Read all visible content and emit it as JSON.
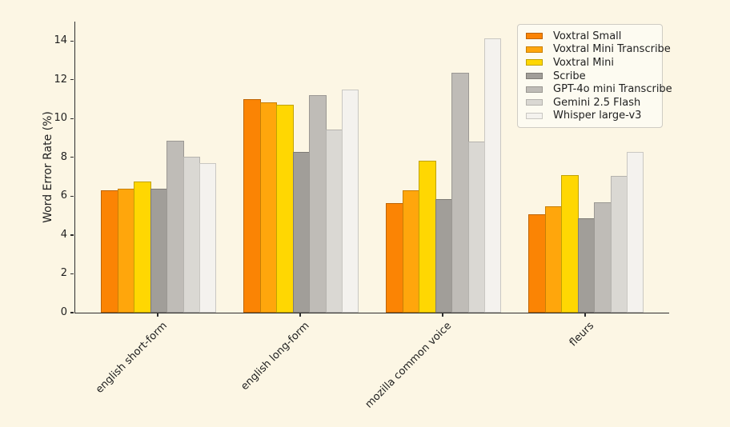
{
  "chart_data": {
    "type": "bar",
    "title": "",
    "ylabel": "Word Error Rate (%)",
    "xlabel": "",
    "categories": [
      "english short-form",
      "english long-form",
      "mozilla common voice",
      "fleurs"
    ],
    "series": [
      {
        "name": "Voxtral Small",
        "color": "#FB8404",
        "edge": "#BE6403",
        "values": [
          6.3,
          11.0,
          5.65,
          5.05
        ]
      },
      {
        "name": "Voxtral Mini Transcribe",
        "color": "#FFA60C",
        "edge": "#C77F06",
        "values": [
          6.4,
          10.85,
          6.3,
          5.5
        ]
      },
      {
        "name": "Voxtral Mini",
        "color": "#FFD702",
        "edge": "#C0A202",
        "values": [
          6.75,
          10.7,
          7.85,
          7.1
        ]
      },
      {
        "name": "Scribe",
        "color": "#A19E99",
        "edge": "#7E7B76",
        "values": [
          6.4,
          8.3,
          5.85,
          4.85
        ]
      },
      {
        "name": "GPT-4o mini Transcribe",
        "color": "#BFBCB7",
        "edge": "#9B9893",
        "values": [
          8.85,
          11.2,
          12.35,
          5.7
        ]
      },
      {
        "name": "Gemini 2.5 Flash",
        "color": "#DAD8D3",
        "edge": "#B5B3AE",
        "values": [
          8.05,
          9.45,
          8.8,
          7.05
        ]
      },
      {
        "name": "Whisper large-v3",
        "color": "#F4F2EE",
        "edge": "#C9C7C2",
        "values": [
          7.7,
          11.5,
          14.15,
          8.3
        ]
      }
    ],
    "ylim": [
      0,
      15
    ],
    "yticks": [
      0,
      2,
      4,
      6,
      8,
      10,
      12,
      14
    ],
    "grid": false,
    "legend_position": "upper right",
    "colors": {
      "background": "#FCF6E4",
      "legend_background": "#FDFBF1",
      "legend_border": "#CFCCC4",
      "spine": "#2e2e2e",
      "text": "#1f1f1f"
    }
  }
}
